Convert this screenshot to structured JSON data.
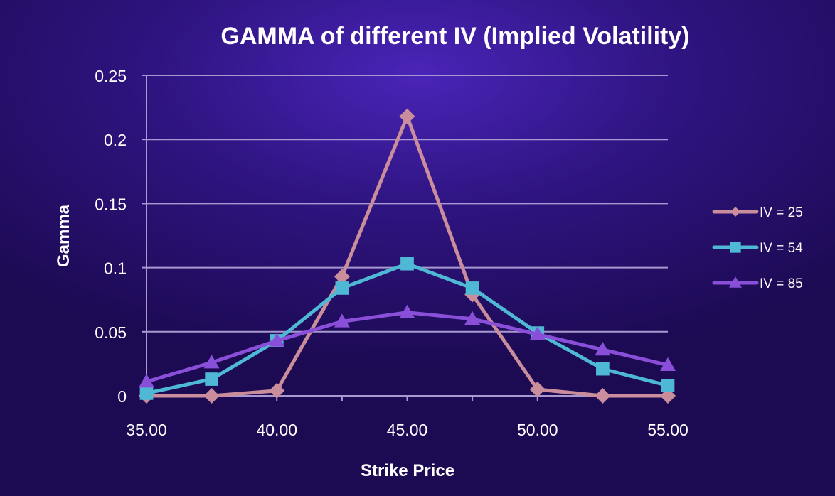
{
  "chart_data": {
    "type": "line",
    "title": "GAMMA  of different IV (Implied Volatility)",
    "xlabel": "Strike Price",
    "ylabel": "Gamma",
    "x": [
      35,
      37.5,
      40,
      42.5,
      45,
      47.5,
      50,
      52.5,
      55
    ],
    "xticks": [
      "35.00",
      "40.00",
      "45.00",
      "50.00",
      "55.00"
    ],
    "xtick_values": [
      35,
      40,
      45,
      50,
      55
    ],
    "yticks": [
      "0",
      "0.05",
      "0.1",
      "0.15",
      "0.2",
      "0.25"
    ],
    "ytick_values": [
      0,
      0.05,
      0.1,
      0.15,
      0.2,
      0.25
    ],
    "xlim": [
      35,
      55
    ],
    "ylim": [
      0,
      0.25
    ],
    "grid": "horizontal",
    "legend_position": "right",
    "series": [
      {
        "name": "IV = 25",
        "color": "#c98d9c",
        "marker": "diamond",
        "values": [
          0.0,
          0.0,
          0.004,
          0.093,
          0.218,
          0.079,
          0.005,
          0.0,
          0.0
        ]
      },
      {
        "name": "IV = 54",
        "color": "#4fb8d4",
        "marker": "square",
        "values": [
          0.002,
          0.013,
          0.043,
          0.084,
          0.103,
          0.084,
          0.049,
          0.021,
          0.008
        ]
      },
      {
        "name": "IV = 85",
        "color": "#8a4fd8",
        "marker": "triangle",
        "values": [
          0.011,
          0.026,
          0.043,
          0.058,
          0.065,
          0.06,
          0.048,
          0.036,
          0.024
        ]
      }
    ]
  }
}
